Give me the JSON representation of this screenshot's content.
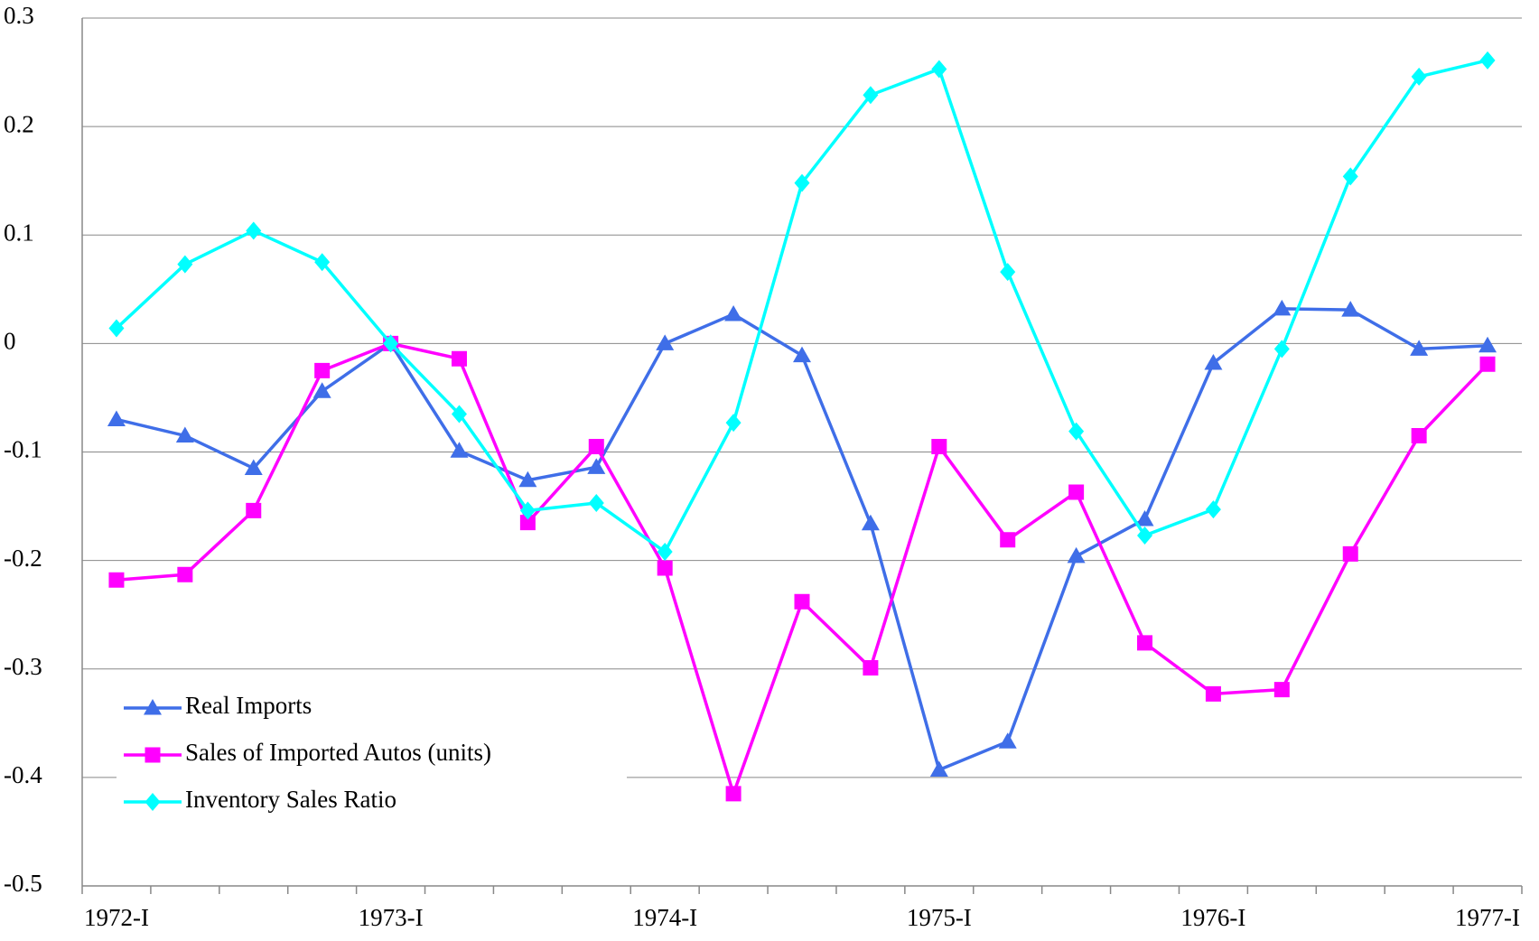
{
  "chart_data": {
    "type": "line",
    "categories": [
      "1972-I",
      null,
      null,
      null,
      "1973-I",
      null,
      null,
      null,
      "1974-I",
      null,
      null,
      null,
      "1975-I",
      null,
      null,
      null,
      "1976-I",
      null,
      null,
      null,
      "1977-I"
    ],
    "series": [
      {
        "name": "Real Imports",
        "color": "#3f6ee8",
        "marker": "triangle",
        "values": [
          -0.07,
          -0.085,
          -0.115,
          -0.044,
          0,
          -0.099,
          -0.126,
          -0.114,
          0,
          0.027,
          -0.011,
          -0.166,
          -0.393,
          -0.367,
          -0.196,
          -0.162,
          -0.018,
          0.032,
          0.031,
          -0.005,
          -0.002
        ]
      },
      {
        "name": "Sales of Imported Autos (units)",
        "color": "#ff00ff",
        "marker": "square",
        "values": [
          -0.218,
          -0.213,
          -0.154,
          -0.025,
          0,
          -0.014,
          -0.165,
          -0.095,
          -0.207,
          -0.415,
          -0.238,
          -0.299,
          -0.095,
          -0.181,
          -0.137,
          -0.276,
          -0.323,
          -0.319,
          -0.194,
          -0.085,
          -0.019
        ]
      },
      {
        "name": "Inventory Sales Ratio",
        "color": "#00ffff",
        "marker": "diamond",
        "values": [
          0.014,
          0.073,
          0.104,
          0.075,
          0,
          -0.065,
          -0.154,
          -0.147,
          -0.192,
          -0.073,
          0.148,
          0.229,
          0.253,
          0.066,
          -0.081,
          -0.177,
          -0.153,
          -0.005,
          0.154,
          0.246,
          0.261
        ]
      }
    ],
    "ylim": [
      -0.5,
      0.3
    ],
    "yticks": [
      -0.5,
      -0.4,
      -0.3,
      -0.2,
      -0.1,
      0,
      0.1,
      0.2,
      0.3
    ],
    "grid": true,
    "legend": "lower left"
  }
}
